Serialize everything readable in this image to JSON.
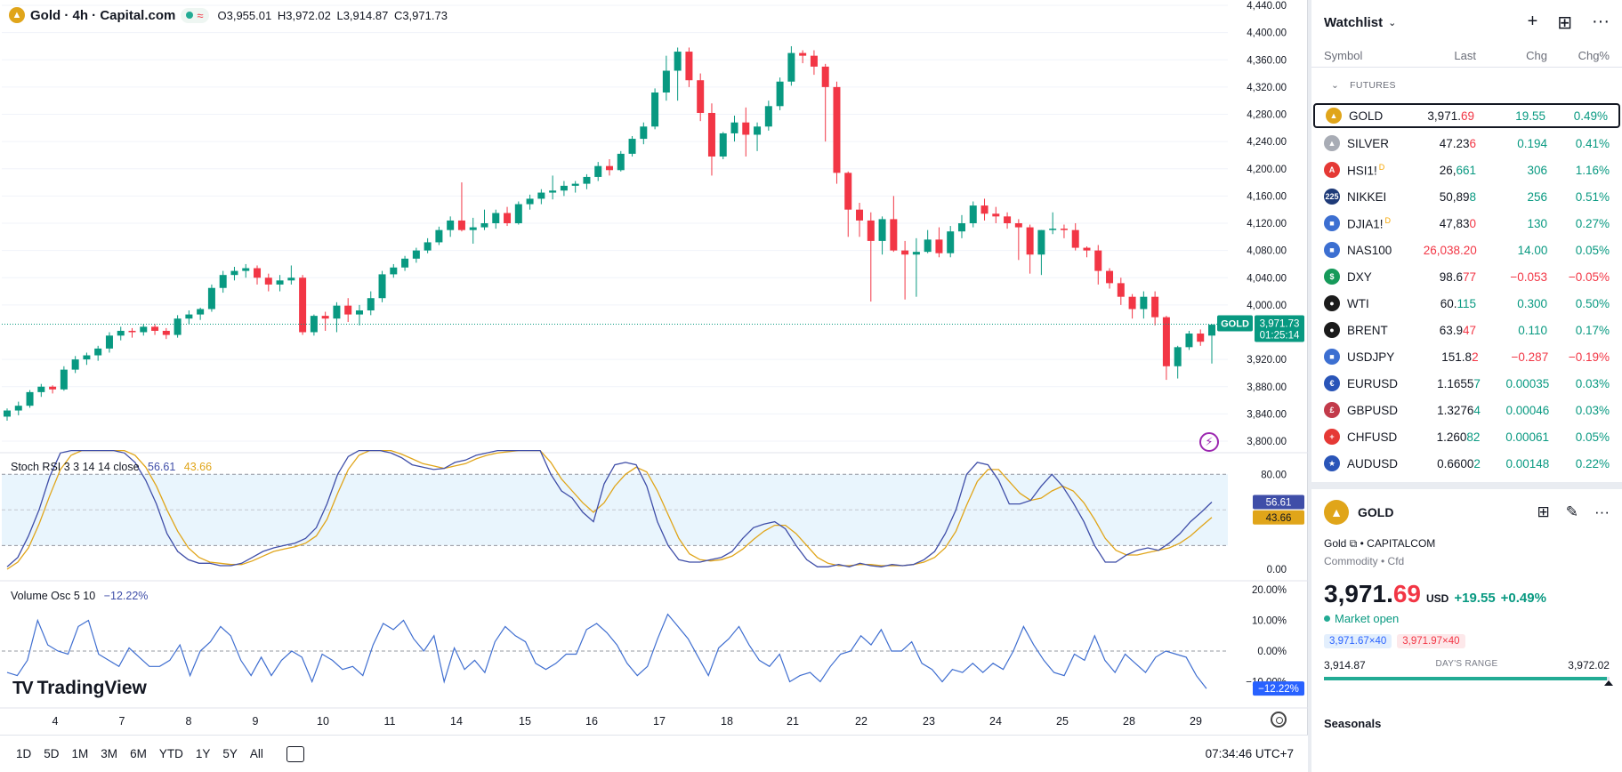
{
  "chart": {
    "symbol_title": "Gold · 4h · Capital.com",
    "ohlc": {
      "o": "O3,955.01",
      "h": "H3,972.02",
      "l": "L3,914.87",
      "c": "C3,971.73"
    },
    "price_axis": [
      "4,440.00",
      "4,400.00",
      "4,360.00",
      "4,320.00",
      "4,280.00",
      "4,240.00",
      "4,200.00",
      "4,160.00",
      "4,120.00",
      "4,080.00",
      "4,040.00",
      "4,000.00",
      "3,920.00",
      "3,880.00",
      "3,840.00",
      "3,800.00"
    ],
    "price_axis_values": [
      4440,
      4400,
      4360,
      4320,
      4280,
      4240,
      4200,
      4160,
      4120,
      4080,
      4040,
      4000,
      3920,
      3880,
      3840,
      3800
    ],
    "last_price_tag": {
      "symbol": "GOLD",
      "price": "3,971.73",
      "countdown": "01:25:14",
      "value": 3971.73
    },
    "x_axis": [
      "4",
      "7",
      "8",
      "9",
      "10",
      "11",
      "14",
      "15",
      "16",
      "17",
      "18",
      "21",
      "22",
      "23",
      "24",
      "25",
      "28",
      "29"
    ],
    "candles": [
      [
        3836,
        3848,
        3830,
        3845
      ],
      [
        3845,
        3858,
        3838,
        3852
      ],
      [
        3852,
        3875,
        3849,
        3872
      ],
      [
        3872,
        3884,
        3865,
        3880
      ],
      [
        3880,
        3882,
        3870,
        3876
      ],
      [
        3876,
        3910,
        3874,
        3905
      ],
      [
        3905,
        3925,
        3900,
        3920
      ],
      [
        3920,
        3930,
        3912,
        3926
      ],
      [
        3926,
        3940,
        3918,
        3936
      ],
      [
        3936,
        3960,
        3930,
        3955
      ],
      [
        3955,
        3968,
        3948,
        3962
      ],
      [
        3962,
        3966,
        3952,
        3960
      ],
      [
        3960,
        3972,
        3955,
        3968
      ],
      [
        3968,
        3972,
        3956,
        3962
      ],
      [
        3962,
        3966,
        3950,
        3956
      ],
      [
        3956,
        3985,
        3952,
        3980
      ],
      [
        3980,
        3992,
        3972,
        3986
      ],
      [
        3986,
        3996,
        3978,
        3994
      ],
      [
        3994,
        4030,
        3990,
        4025
      ],
      [
        4025,
        4050,
        4018,
        4044
      ],
      [
        4044,
        4056,
        4036,
        4050
      ],
      [
        4050,
        4060,
        4040,
        4054
      ],
      [
        4054,
        4058,
        4030,
        4040
      ],
      [
        4040,
        4046,
        4020,
        4030
      ],
      [
        4030,
        4044,
        4020,
        4036
      ],
      [
        4036,
        4058,
        4030,
        4040
      ],
      [
        4040,
        4044,
        3956,
        3960
      ],
      [
        3960,
        3986,
        3955,
        3984
      ],
      [
        3984,
        3990,
        3962,
        3980
      ],
      [
        3980,
        4004,
        3960,
        3999
      ],
      [
        3999,
        4010,
        3975,
        3986
      ],
      [
        3986,
        4000,
        3970,
        3992
      ],
      [
        3992,
        4020,
        3985,
        4010
      ],
      [
        4010,
        4050,
        4004,
        4045
      ],
      [
        4045,
        4060,
        4040,
        4055
      ],
      [
        4055,
        4072,
        4050,
        4068
      ],
      [
        4068,
        4084,
        4062,
        4080
      ],
      [
        4080,
        4098,
        4076,
        4092
      ],
      [
        4092,
        4115,
        4088,
        4110
      ],
      [
        4110,
        4130,
        4100,
        4124
      ],
      [
        4124,
        4180,
        4108,
        4110
      ],
      [
        4110,
        4128,
        4090,
        4114
      ],
      [
        4114,
        4140,
        4110,
        4120
      ],
      [
        4120,
        4140,
        4112,
        4135
      ],
      [
        4135,
        4144,
        4116,
        4120
      ],
      [
        4120,
        4152,
        4118,
        4148
      ],
      [
        4148,
        4162,
        4140,
        4156
      ],
      [
        4156,
        4170,
        4148,
        4165
      ],
      [
        4165,
        4190,
        4155,
        4168
      ],
      [
        4168,
        4182,
        4160,
        4175
      ],
      [
        4175,
        4182,
        4165,
        4178
      ],
      [
        4178,
        4192,
        4170,
        4188
      ],
      [
        4188,
        4210,
        4182,
        4204
      ],
      [
        4204,
        4214,
        4190,
        4198
      ],
      [
        4198,
        4226,
        4196,
        4222
      ],
      [
        4222,
        4248,
        4218,
        4244
      ],
      [
        4244,
        4268,
        4236,
        4262
      ],
      [
        4262,
        4318,
        4258,
        4312
      ],
      [
        4312,
        4366,
        4300,
        4344
      ],
      [
        4344,
        4378,
        4300,
        4372
      ],
      [
        4372,
        4378,
        4320,
        4330
      ],
      [
        4330,
        4340,
        4270,
        4282
      ],
      [
        4282,
        4296,
        4190,
        4218
      ],
      [
        4218,
        4254,
        4214,
        4252
      ],
      [
        4252,
        4278,
        4240,
        4268
      ],
      [
        4268,
        4290,
        4218,
        4250
      ],
      [
        4250,
        4268,
        4226,
        4262
      ],
      [
        4262,
        4300,
        4256,
        4292
      ],
      [
        4292,
        4334,
        4286,
        4328
      ],
      [
        4328,
        4380,
        4322,
        4370
      ],
      [
        4370,
        4374,
        4355,
        4366
      ],
      [
        4366,
        4374,
        4338,
        4350
      ],
      [
        4350,
        4354,
        4240,
        4320
      ],
      [
        4320,
        4328,
        4178,
        4194
      ],
      [
        4194,
        4196,
        4100,
        4140
      ],
      [
        4140,
        4150,
        4100,
        4124
      ],
      [
        4124,
        4136,
        4005,
        4094
      ],
      [
        4094,
        4130,
        4074,
        4126
      ],
      [
        4126,
        4160,
        4078,
        4080
      ],
      [
        4080,
        4094,
        4008,
        4074
      ],
      [
        4074,
        4098,
        4012,
        4078
      ],
      [
        4078,
        4110,
        4076,
        4096
      ],
      [
        4096,
        4114,
        4070,
        4076
      ],
      [
        4076,
        4116,
        4070,
        4108
      ],
      [
        4108,
        4132,
        4098,
        4120
      ],
      [
        4120,
        4152,
        4114,
        4146
      ],
      [
        4146,
        4156,
        4124,
        4134
      ],
      [
        4134,
        4144,
        4120,
        4130
      ],
      [
        4130,
        4136,
        4112,
        4120
      ],
      [
        4120,
        4126,
        4066,
        4114
      ],
      [
        4114,
        4118,
        4046,
        4074
      ],
      [
        4074,
        4110,
        4044,
        4110
      ],
      [
        4110,
        4136,
        4104,
        4112
      ],
      [
        4112,
        4118,
        4098,
        4110
      ],
      [
        4110,
        4120,
        4080,
        4084
      ],
      [
        4084,
        4086,
        4070,
        4080
      ],
      [
        4080,
        4088,
        4030,
        4050
      ],
      [
        4050,
        4054,
        4024,
        4032
      ],
      [
        4032,
        4040,
        4000,
        4012
      ],
      [
        4012,
        4016,
        3980,
        3994
      ],
      [
        3994,
        4020,
        3980,
        4012
      ],
      [
        4012,
        4020,
        3970,
        3982
      ],
      [
        3982,
        3984,
        3890,
        3910
      ],
      [
        3910,
        3940,
        3892,
        3938
      ],
      [
        3938,
        3962,
        3934,
        3958
      ],
      [
        3958,
        3964,
        3940,
        3946
      ],
      [
        3955,
        3972,
        3914,
        3971
      ]
    ],
    "stoch": {
      "label": "Stoch RSI 3 3 14 14 close",
      "k": "56.61",
      "d": "43.66",
      "axis": [
        "80.00",
        "0.00"
      ],
      "axis_values": [
        80,
        0
      ],
      "k_series": [
        2,
        10,
        28,
        50,
        78,
        98,
        100,
        100,
        100,
        100,
        100,
        98,
        90,
        75,
        55,
        30,
        15,
        8,
        5,
        5,
        3,
        3,
        5,
        10,
        15,
        18,
        20,
        22,
        26,
        35,
        55,
        80,
        95,
        100,
        100,
        100,
        98,
        94,
        88,
        86,
        84,
        85,
        90,
        92,
        96,
        98,
        100,
        100,
        100,
        100,
        100,
        80,
        66,
        60,
        48,
        40,
        72,
        88,
        90,
        88,
        70,
        40,
        20,
        8,
        6,
        6,
        8,
        10,
        15,
        26,
        35,
        38,
        40,
        34,
        20,
        8,
        2,
        2,
        4,
        2,
        5,
        3,
        2,
        4,
        3,
        4,
        8,
        15,
        30,
        50,
        80,
        90,
        88,
        75,
        55,
        55,
        58,
        70,
        80,
        70,
        56,
        40,
        20,
        6,
        6,
        12,
        16,
        18,
        16,
        22,
        30,
        40,
        48,
        56.61
      ],
      "d_series": [
        0,
        6,
        18,
        38,
        62,
        84,
        96,
        100,
        100,
        100,
        100,
        100,
        96,
        86,
        70,
        50,
        32,
        18,
        10,
        6,
        5,
        4,
        4,
        7,
        11,
        15,
        17,
        19,
        22,
        28,
        42,
        64,
        84,
        96,
        100,
        100,
        100,
        97,
        93,
        89,
        87,
        85,
        87,
        89,
        93,
        96,
        98,
        99,
        100,
        100,
        100,
        90,
        76,
        66,
        56,
        48,
        56,
        70,
        80,
        86,
        82,
        66,
        46,
        26,
        13,
        8,
        7,
        8,
        11,
        17,
        25,
        32,
        37,
        37,
        30,
        20,
        10,
        5,
        3,
        3,
        4,
        4,
        3,
        3,
        3,
        4,
        6,
        10,
        18,
        32,
        54,
        74,
        84,
        84,
        74,
        64,
        58,
        60,
        66,
        70,
        66,
        56,
        42,
        26,
        16,
        12,
        12,
        14,
        16,
        18,
        22,
        28,
        36,
        43.66
      ]
    },
    "vol": {
      "label": "Volume Osc 5 10",
      "value": "−12.22%",
      "axis": [
        "20.00%",
        "10.00%",
        "0.00%",
        "−10.00%"
      ],
      "axis_values": [
        20,
        10,
        0,
        -10
      ],
      "series": [
        -7,
        -8,
        -3,
        10,
        2,
        0,
        -1,
        8,
        10,
        -1,
        -3,
        -5,
        1,
        -2,
        -5,
        -5,
        -3,
        2,
        -8,
        0,
        3,
        8,
        5,
        -3,
        -8,
        -2,
        -8,
        -3,
        0,
        -2,
        -10,
        -1,
        -3,
        -6,
        -5,
        -8,
        2,
        9,
        7,
        10,
        4,
        0,
        5,
        -10,
        1,
        -6,
        -3,
        -7,
        3,
        8,
        5,
        3,
        -4,
        -6,
        -4,
        -1,
        -1,
        7,
        9,
        6,
        2,
        -4,
        -8,
        -5,
        4,
        12,
        8,
        4,
        -2,
        -8,
        1,
        4,
        8,
        2,
        -3,
        -5,
        -1,
        -10,
        -8,
        -7,
        -10,
        -5,
        -1,
        0,
        5,
        2,
        7,
        0,
        0,
        3,
        -4,
        -6,
        -10,
        -6,
        -7,
        -4,
        -7,
        -4,
        -6,
        0,
        8,
        2,
        -3,
        -7,
        -8,
        -1,
        -3,
        5,
        -3,
        -7,
        -1,
        -4,
        -7,
        -2,
        0,
        -1,
        -2,
        -8,
        -12.22
      ]
    }
  },
  "bottom_bar": {
    "ranges": [
      "1D",
      "5D",
      "1M",
      "3M",
      "6M",
      "YTD",
      "1Y",
      "5Y",
      "All"
    ],
    "clock": "07:34:46 UTC+7"
  },
  "branding": "TradingView",
  "watchlist": {
    "title": "Watchlist",
    "columns": {
      "symbol": "Symbol",
      "last": "Last",
      "chg": "Chg",
      "pct": "Chg%"
    },
    "section": "FUTURES",
    "rows": [
      {
        "sym": "GOLD",
        "last_main": "3,971.",
        "last_tail": "69",
        "tail_color": "#f23645",
        "chg": "19.55",
        "pct": "0.49%",
        "dir": "pos",
        "icon_bg": "#e0a51a",
        "icon_txt": "▲"
      },
      {
        "sym": "SILVER",
        "last_main": "47.23",
        "last_tail": "6",
        "tail_color": "#f23645",
        "chg": "0.194",
        "pct": "0.41%",
        "dir": "pos",
        "icon_bg": "#a8acb5",
        "icon_txt": "▲"
      },
      {
        "sym": "HSI1!",
        "last_main": "26,",
        "last_tail": "661",
        "tail_color": "#089981",
        "chg": "306",
        "pct": "1.16%",
        "dir": "pos",
        "icon_bg": "#e53935",
        "icon_txt": "A",
        "badge": "D"
      },
      {
        "sym": "NIKKEI",
        "last_main": "50,89",
        "last_tail": "8",
        "tail_color": "#089981",
        "chg": "256",
        "pct": "0.51%",
        "dir": "pos",
        "icon_bg": "#1e3a78",
        "icon_txt": "225"
      },
      {
        "sym": "DJIA1!",
        "last_main": "47,83",
        "last_tail": "0",
        "tail_color": "#f23645",
        "chg": "130",
        "pct": "0.27%",
        "dir": "pos",
        "icon_bg": "#3c6fd1",
        "icon_txt": "■",
        "badge": "D"
      },
      {
        "sym": "NAS100",
        "last_main": "26,038.20",
        "last_tail": "",
        "tail_color": "#f23645",
        "main_color": "#f23645",
        "chg": "14.00",
        "pct": "0.05%",
        "dir": "pos",
        "icon_bg": "#3c6fd1",
        "icon_txt": "■"
      },
      {
        "sym": "DXY",
        "last_main": "98.6",
        "last_tail": "77",
        "tail_color": "#f23645",
        "chg": "−0.053",
        "pct": "−0.05%",
        "dir": "neg",
        "icon_bg": "#169a5a",
        "icon_txt": "$"
      },
      {
        "sym": "WTI",
        "last_main": "60.",
        "last_tail": "115",
        "tail_color": "#089981",
        "chg": "0.300",
        "pct": "0.50%",
        "dir": "pos",
        "icon_bg": "#1b1b1b",
        "icon_txt": "●"
      },
      {
        "sym": "BRENT",
        "last_main": "63.9",
        "last_tail": "47",
        "tail_color": "#f23645",
        "chg": "0.110",
        "pct": "0.17%",
        "dir": "pos",
        "icon_bg": "#1b1b1b",
        "icon_txt": "●"
      },
      {
        "sym": "USDJPY",
        "last_main": "151.8",
        "last_tail": "2",
        "tail_color": "#f23645",
        "chg": "−0.287",
        "pct": "−0.19%",
        "dir": "neg",
        "icon_bg": "#3c6fd1",
        "icon_txt": "■"
      },
      {
        "sym": "EURUSD",
        "last_main": "1.1655",
        "last_tail": "7",
        "tail_color": "#089981",
        "chg": "0.00035",
        "pct": "0.03%",
        "dir": "pos",
        "icon_bg": "#2a55b8",
        "icon_txt": "€"
      },
      {
        "sym": "GBPUSD",
        "last_main": "1.3276",
        "last_tail": "4",
        "tail_color": "#089981",
        "chg": "0.00046",
        "pct": "0.03%",
        "dir": "pos",
        "icon_bg": "#c23a4a",
        "icon_txt": "£"
      },
      {
        "sym": "CHFUSD",
        "last_main": "1.260",
        "last_tail": "82",
        "tail_color": "#089981",
        "chg": "0.00061",
        "pct": "0.05%",
        "dir": "pos",
        "icon_bg": "#e53935",
        "icon_txt": "+"
      },
      {
        "sym": "AUDUSD",
        "last_main": "0.6600",
        "last_tail": "2",
        "tail_color": "#089981",
        "chg": "0.00148",
        "pct": "0.22%",
        "dir": "pos",
        "icon_bg": "#2a55b8",
        "icon_txt": "★"
      }
    ]
  },
  "detail": {
    "symbol": "GOLD",
    "name": "Gold",
    "exchange": "CAPITALCOM",
    "type": "Commodity • Cfd",
    "price_main": "3,971.",
    "price_tail": "69",
    "currency": "USD",
    "change": "+19.55",
    "change_pct": "+0.49%",
    "market": "Market open",
    "bid": "3,971.67×40",
    "ask": "3,971.97×40",
    "day_low": "3,914.87",
    "day_high": "3,972.02",
    "range_label": "DAY'S RANGE",
    "range_position": 0.99,
    "seasonals": "Seasonals"
  }
}
